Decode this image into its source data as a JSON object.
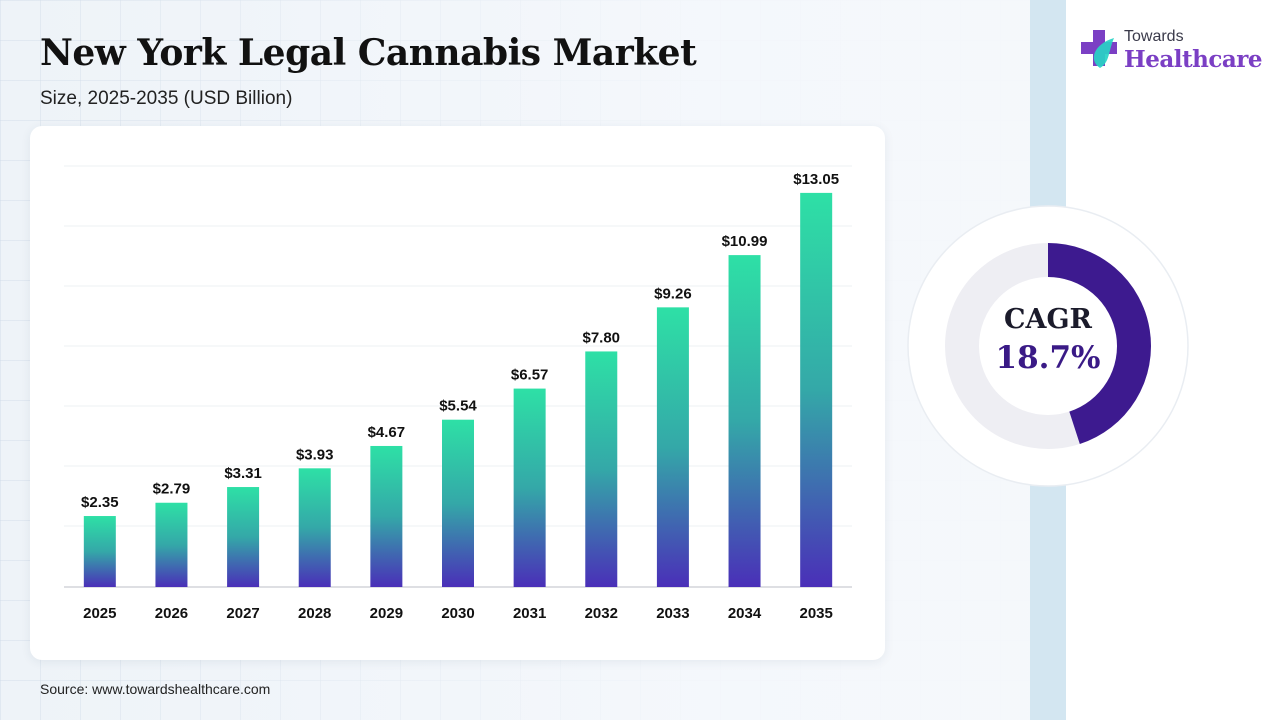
{
  "header": {
    "title": "New York Legal Cannabis Market",
    "subtitle": "Size, 2025-2035 (USD Billion)"
  },
  "logo": {
    "top_text": "Towards",
    "main_text": "Healthcare"
  },
  "cagr": {
    "label": "CAGR",
    "value": "18.7%",
    "fraction": 0.45
  },
  "source": "Source: www.towardshealthcare.com",
  "colors": {
    "bar_top": "#2ee0a6",
    "bar_bottom": "#4a2fb8",
    "ring": "#3d1a8f",
    "ring_track": "#eeeef3",
    "logo_purple": "#7b3fc4"
  },
  "chart_data": {
    "type": "bar",
    "title": "New York Legal Cannabis Market",
    "subtitle": "Size, 2025-2035 (USD Billion)",
    "categories": [
      "2025",
      "2026",
      "2027",
      "2028",
      "2029",
      "2030",
      "2031",
      "2032",
      "2033",
      "2034",
      "2035"
    ],
    "values": [
      2.35,
      2.79,
      3.31,
      3.93,
      4.67,
      5.54,
      6.57,
      7.8,
      9.26,
      10.99,
      13.05
    ],
    "labels": [
      "$2.35",
      "$2.79",
      "$3.31",
      "$3.93",
      "$4.67",
      "$5.54",
      "$6.57",
      "$7.80",
      "$9.26",
      "$10.99",
      "$13.05"
    ],
    "ylim": [
      0,
      14
    ],
    "grid": true,
    "legend": "none"
  }
}
